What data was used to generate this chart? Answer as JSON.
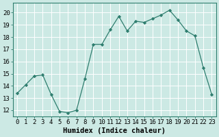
{
  "x": [
    0,
    1,
    2,
    3,
    4,
    5,
    6,
    7,
    8,
    9,
    10,
    11,
    12,
    13,
    14,
    15,
    16,
    17,
    18,
    19,
    20,
    21,
    22,
    23
  ],
  "y": [
    13.4,
    14.1,
    14.8,
    14.9,
    13.3,
    11.9,
    11.8,
    12.0,
    14.6,
    17.4,
    17.4,
    18.6,
    19.7,
    18.5,
    19.3,
    19.2,
    19.5,
    19.8,
    20.2,
    19.4,
    18.5,
    18.1,
    15.5,
    13.3
  ],
  "line_color": "#2e7d6e",
  "marker": "D",
  "marker_size": 2.2,
  "bg_color": "#cce9e4",
  "grid_color": "#ffffff",
  "xlabel": "Humidex (Indice chaleur)",
  "ylim": [
    11.5,
    20.8
  ],
  "xlim": [
    -0.5,
    23.5
  ],
  "yticks": [
    12,
    13,
    14,
    15,
    16,
    17,
    18,
    19,
    20
  ],
  "xticks": [
    0,
    1,
    2,
    3,
    4,
    5,
    6,
    7,
    8,
    9,
    10,
    11,
    12,
    13,
    14,
    15,
    16,
    17,
    18,
    19,
    20,
    21,
    22,
    23
  ],
  "tick_fontsize": 6.5,
  "xlabel_fontsize": 7.5,
  "linewidth": 0.9
}
